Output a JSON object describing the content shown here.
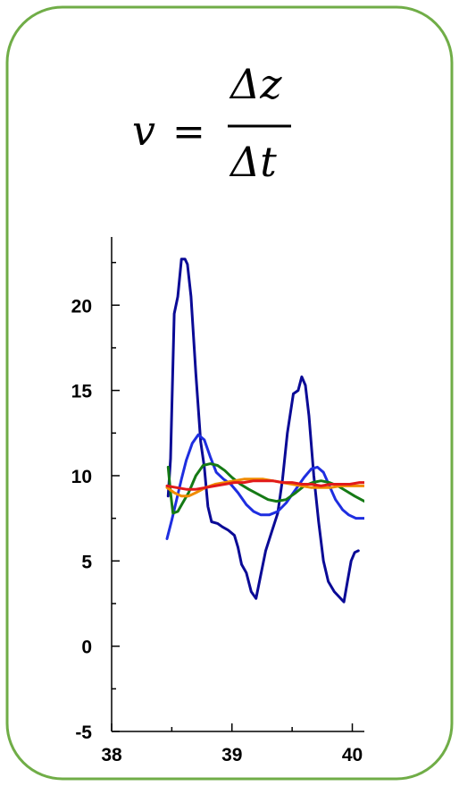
{
  "formula": {
    "lhs": "v",
    "equals": "=",
    "numerator": "Δz",
    "denominator": "Δt"
  },
  "chart_data": {
    "type": "line",
    "xlim": [
      38,
      40.1
    ],
    "ylim": [
      -5,
      24
    ],
    "x_ticks": [
      38,
      39,
      40
    ],
    "x_tick_labels": [
      "38",
      "39",
      "40"
    ],
    "y_ticks": [
      -5,
      0,
      5,
      10,
      15,
      20
    ],
    "y_tick_labels": [
      "-5",
      "0",
      "5",
      "10",
      "15",
      "20"
    ],
    "grid": false,
    "series": [
      {
        "color": "#0a0a96",
        "points": [
          [
            38.47,
            8.8
          ],
          [
            38.49,
            11.0
          ],
          [
            38.52,
            19.5
          ],
          [
            38.55,
            20.5
          ],
          [
            38.58,
            22.7
          ],
          [
            38.61,
            22.7
          ],
          [
            38.63,
            22.4
          ],
          [
            38.66,
            20.5
          ],
          [
            38.7,
            16.0
          ],
          [
            38.74,
            12.0
          ],
          [
            38.77,
            10.5
          ],
          [
            38.8,
            8.2
          ],
          [
            38.83,
            7.3
          ],
          [
            38.88,
            7.2
          ],
          [
            38.92,
            7.0
          ],
          [
            38.97,
            6.8
          ],
          [
            39.02,
            6.5
          ],
          [
            39.05,
            5.8
          ],
          [
            39.08,
            4.8
          ],
          [
            39.12,
            4.3
          ],
          [
            39.16,
            3.2
          ],
          [
            39.2,
            2.8
          ],
          [
            39.24,
            4.2
          ],
          [
            39.28,
            5.6
          ],
          [
            39.33,
            6.7
          ],
          [
            39.38,
            7.8
          ],
          [
            39.42,
            9.8
          ],
          [
            39.46,
            12.5
          ],
          [
            39.51,
            14.8
          ],
          [
            39.55,
            15.0
          ],
          [
            39.58,
            15.8
          ],
          [
            39.61,
            15.3
          ],
          [
            39.64,
            13.5
          ],
          [
            39.68,
            10.0
          ],
          [
            39.72,
            7.3
          ],
          [
            39.76,
            5.0
          ],
          [
            39.8,
            3.8
          ],
          [
            39.85,
            3.2
          ],
          [
            39.89,
            2.9
          ],
          [
            39.93,
            2.6
          ],
          [
            39.96,
            3.8
          ],
          [
            39.99,
            5.0
          ],
          [
            40.02,
            5.5
          ],
          [
            40.05,
            5.6
          ]
        ]
      },
      {
        "color": "#1e2ee0",
        "points": [
          [
            38.46,
            6.3
          ],
          [
            38.5,
            7.4
          ],
          [
            38.54,
            8.6
          ],
          [
            38.58,
            9.8
          ],
          [
            38.62,
            10.9
          ],
          [
            38.67,
            11.9
          ],
          [
            38.72,
            12.4
          ],
          [
            38.77,
            12.1
          ],
          [
            38.82,
            11.1
          ],
          [
            38.87,
            10.2
          ],
          [
            38.93,
            9.8
          ],
          [
            38.99,
            9.5
          ],
          [
            39.05,
            9.0
          ],
          [
            39.12,
            8.3
          ],
          [
            39.18,
            7.9
          ],
          [
            39.24,
            7.7
          ],
          [
            39.31,
            7.7
          ],
          [
            39.38,
            7.9
          ],
          [
            39.45,
            8.4
          ],
          [
            39.53,
            9.2
          ],
          [
            39.6,
            9.9
          ],
          [
            39.66,
            10.4
          ],
          [
            39.71,
            10.5
          ],
          [
            39.76,
            10.2
          ],
          [
            39.81,
            9.4
          ],
          [
            39.86,
            8.6
          ],
          [
            39.92,
            8.0
          ],
          [
            39.97,
            7.7
          ],
          [
            40.03,
            7.5
          ],
          [
            40.1,
            7.5
          ]
        ]
      },
      {
        "color": "#157a15",
        "points": [
          [
            38.47,
            10.5
          ],
          [
            38.49,
            9.0
          ],
          [
            38.51,
            7.8
          ],
          [
            38.55,
            7.9
          ],
          [
            38.59,
            8.4
          ],
          [
            38.64,
            9.0
          ],
          [
            38.7,
            10.0
          ],
          [
            38.76,
            10.6
          ],
          [
            38.82,
            10.7
          ],
          [
            38.88,
            10.6
          ],
          [
            38.94,
            10.3
          ],
          [
            39.0,
            9.9
          ],
          [
            39.07,
            9.5
          ],
          [
            39.14,
            9.2
          ],
          [
            39.22,
            8.9
          ],
          [
            39.3,
            8.6
          ],
          [
            39.37,
            8.5
          ],
          [
            39.45,
            8.6
          ],
          [
            39.53,
            9.0
          ],
          [
            39.6,
            9.4
          ],
          [
            39.67,
            9.6
          ],
          [
            39.74,
            9.7
          ],
          [
            39.81,
            9.6
          ],
          [
            39.88,
            9.4
          ],
          [
            39.95,
            9.1
          ],
          [
            40.02,
            8.8
          ],
          [
            40.1,
            8.5
          ]
        ]
      },
      {
        "color": "#f08c00",
        "points": [
          [
            38.46,
            9.3
          ],
          [
            38.52,
            9.0
          ],
          [
            38.58,
            8.8
          ],
          [
            38.64,
            8.8
          ],
          [
            38.7,
            9.0
          ],
          [
            38.78,
            9.3
          ],
          [
            38.86,
            9.5
          ],
          [
            38.94,
            9.6
          ],
          [
            39.02,
            9.7
          ],
          [
            39.1,
            9.8
          ],
          [
            39.18,
            9.8
          ],
          [
            39.26,
            9.8
          ],
          [
            39.34,
            9.7
          ],
          [
            39.42,
            9.6
          ],
          [
            39.5,
            9.5
          ],
          [
            39.58,
            9.4
          ],
          [
            39.66,
            9.3
          ],
          [
            39.74,
            9.3
          ],
          [
            39.82,
            9.3
          ],
          [
            39.9,
            9.4
          ],
          [
            39.98,
            9.4
          ],
          [
            40.06,
            9.4
          ],
          [
            40.1,
            9.4
          ]
        ]
      },
      {
        "color": "#e11a1a",
        "points": [
          [
            38.46,
            9.4
          ],
          [
            38.54,
            9.3
          ],
          [
            38.62,
            9.2
          ],
          [
            38.7,
            9.2
          ],
          [
            38.78,
            9.3
          ],
          [
            38.86,
            9.4
          ],
          [
            38.94,
            9.5
          ],
          [
            39.02,
            9.6
          ],
          [
            39.1,
            9.6
          ],
          [
            39.18,
            9.7
          ],
          [
            39.26,
            9.7
          ],
          [
            39.34,
            9.7
          ],
          [
            39.42,
            9.6
          ],
          [
            39.5,
            9.6
          ],
          [
            39.58,
            9.5
          ],
          [
            39.66,
            9.5
          ],
          [
            39.74,
            9.4
          ],
          [
            39.82,
            9.5
          ],
          [
            39.9,
            9.5
          ],
          [
            39.98,
            9.5
          ],
          [
            40.06,
            9.6
          ],
          [
            40.1,
            9.6
          ]
        ]
      }
    ]
  }
}
